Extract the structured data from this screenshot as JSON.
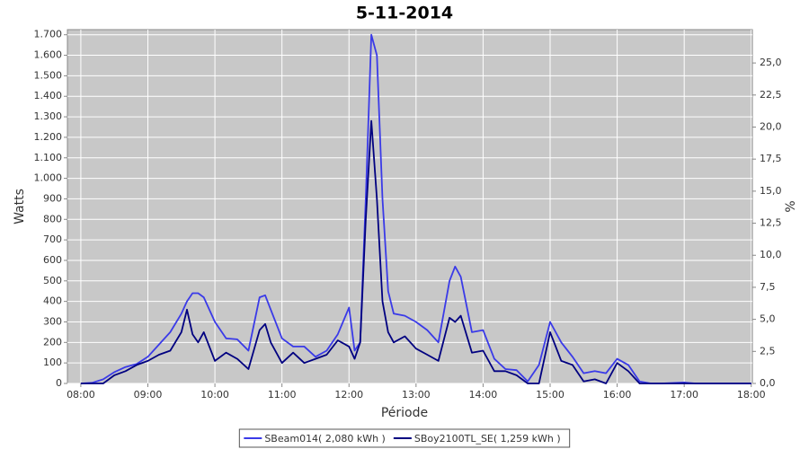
{
  "chart_data": {
    "type": "line",
    "title": "5-11-2014",
    "x_label": "Période",
    "y_label": "Watts",
    "y2_label": "%",
    "x": [
      480,
      490,
      500,
      510,
      520,
      530,
      540,
      550,
      560,
      570,
      575,
      580,
      585,
      590,
      600,
      610,
      620,
      630,
      640,
      645,
      650,
      660,
      670,
      680,
      690,
      700,
      710,
      720,
      725,
      730,
      735,
      740,
      745,
      750,
      755,
      760,
      770,
      780,
      790,
      800,
      810,
      815,
      820,
      830,
      840,
      850,
      860,
      870,
      880,
      890,
      900,
      910,
      920,
      930,
      940,
      950,
      960,
      970,
      980,
      990,
      1000,
      1020,
      1030,
      1080
    ],
    "series": [
      {
        "name": "SBeam014( 2,080 kWh )",
        "color": "#3a3ae8",
        "values": [
          0,
          3,
          20,
          55,
          80,
          95,
          130,
          190,
          250,
          340,
          400,
          440,
          440,
          420,
          300,
          220,
          215,
          160,
          420,
          430,
          360,
          220,
          180,
          180,
          130,
          160,
          240,
          370,
          160,
          200,
          900,
          1700,
          1600,
          900,
          450,
          340,
          330,
          300,
          260,
          200,
          500,
          570,
          520,
          250,
          260,
          120,
          70,
          65,
          10,
          90,
          300,
          200,
          130,
          50,
          60,
          50,
          120,
          90,
          10,
          0,
          0,
          5,
          0,
          0
        ]
      },
      {
        "name": "SBoy2100TL_SE( 1,259 kWh )",
        "color": "#000080",
        "values": [
          0,
          0,
          0,
          40,
          60,
          90,
          110,
          140,
          160,
          250,
          360,
          240,
          200,
          250,
          110,
          150,
          120,
          70,
          260,
          290,
          200,
          100,
          150,
          100,
          120,
          140,
          210,
          180,
          120,
          200,
          800,
          1280,
          900,
          400,
          250,
          200,
          230,
          170,
          140,
          110,
          320,
          300,
          330,
          150,
          160,
          60,
          60,
          40,
          0,
          0,
          250,
          110,
          90,
          10,
          20,
          0,
          100,
          60,
          0,
          0,
          0,
          0,
          0,
          0
        ]
      }
    ],
    "xlim": [
      468,
      1081
    ],
    "xticks": [
      {
        "value": 480,
        "label": "08:00"
      },
      {
        "value": 540,
        "label": "09:00"
      },
      {
        "value": 600,
        "label": "10:00"
      },
      {
        "value": 660,
        "label": "11:00"
      },
      {
        "value": 720,
        "label": "12:00"
      },
      {
        "value": 780,
        "label": "13:00"
      },
      {
        "value": 840,
        "label": "14:00"
      },
      {
        "value": 900,
        "label": "15:00"
      },
      {
        "value": 960,
        "label": "16:00"
      },
      {
        "value": 1020,
        "label": "17:00"
      },
      {
        "value": 1080,
        "label": "18:00"
      }
    ],
    "ylim": [
      0,
      1725
    ],
    "yticks": [
      0,
      100,
      200,
      300,
      400,
      500,
      600,
      700,
      800,
      900,
      {
        "value": 1000,
        "label": "1.000"
      },
      {
        "value": 1100,
        "label": "1.100"
      },
      {
        "value": 1200,
        "label": "1.200"
      },
      {
        "value": 1300,
        "label": "1.300"
      },
      {
        "value": 1400,
        "label": "1.400"
      },
      {
        "value": 1500,
        "label": "1.500"
      },
      {
        "value": 1600,
        "label": "1.600"
      },
      {
        "value": 1700,
        "label": "1.700"
      }
    ],
    "y2lim": [
      0,
      27.6
    ],
    "y2ticks": [
      {
        "value": 0,
        "label": "0,0"
      },
      {
        "value": 2.5,
        "label": "2,5"
      },
      {
        "value": 5,
        "label": "5,0"
      },
      {
        "value": 7.5,
        "label": "7,5"
      },
      {
        "value": 10,
        "label": "10,0"
      },
      {
        "value": 12.5,
        "label": "12,5"
      },
      {
        "value": 15,
        "label": "15,0"
      },
      {
        "value": 17.5,
        "label": "17,5"
      },
      {
        "value": 20,
        "label": "20,0"
      },
      {
        "value": 22.5,
        "label": "22,5"
      },
      {
        "value": 25,
        "label": "25,0"
      }
    ],
    "grid": true,
    "legend": "bottom"
  }
}
